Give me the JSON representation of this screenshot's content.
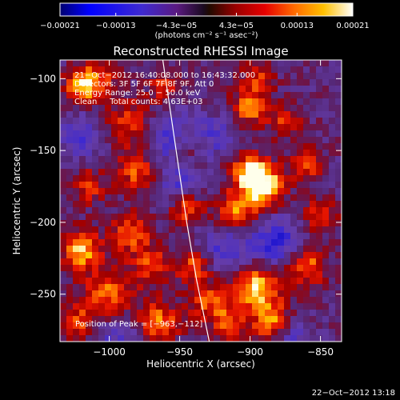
{
  "chart_data": {
    "type": "heatmap",
    "title": "Reconstructed RHESSI Image",
    "xlabel": "Heliocentric X (arcsec)",
    "ylabel": "Heliocentric Y (arcsec)",
    "xlim": [
      -1035,
      -835
    ],
    "ylim": [
      -283,
      -87
    ],
    "x_ticks": [
      -1000,
      -950,
      -900,
      -850
    ],
    "x_tick_labels": [
      "−1000",
      "−950",
      "−900",
      "−850"
    ],
    "y_ticks": [
      -100,
      -150,
      -200,
      -250
    ],
    "y_tick_labels": [
      "−100",
      "−150",
      "−200",
      "−250"
    ],
    "colorbar": {
      "range": [
        -0.00021,
        0.00021
      ],
      "ticks": [
        -0.00021,
        -0.00013,
        -4.3e-05,
        4.3e-05,
        0.00013,
        0.00021
      ],
      "tick_labels": [
        "−0.00021",
        "−0.00013",
        "−4.3e−05",
        "4.3e−05",
        "0.00013",
        "0.00021"
      ],
      "unit_label": "(photons cm⁻² s⁻¹ asec⁻²)"
    },
    "annotations": [
      "21−Oct−2012 16:40:08.000 to 16:43:32.000",
      "Detectors: 3F 5F 6F 7F 8F 9F, Att 0",
      "Energy Range: 25.0 − 50.0 keV",
      "Clean     Total counts: 4.63E+03"
    ],
    "peak_label": "Position of Peak = [−963,−112]",
    "peak_position": [
      -963,
      -112
    ],
    "limb_curve": [
      [
        -962,
        -87
      ],
      [
        -957,
        -120
      ],
      [
        -951,
        -160
      ],
      [
        -945,
        -200
      ],
      [
        -938,
        -240
      ],
      [
        -929,
        -283
      ]
    ],
    "hotspots": [
      [
        -1020,
        -105,
        0.8,
        8
      ],
      [
        -1008,
        -100,
        0.55,
        9
      ],
      [
        -985,
        -130,
        0.5,
        12
      ],
      [
        -980,
        -165,
        0.6,
        10
      ],
      [
        -1015,
        -175,
        0.5,
        9
      ],
      [
        -1020,
        -220,
        0.85,
        10
      ],
      [
        -985,
        -208,
        0.6,
        10
      ],
      [
        -1000,
        -250,
        0.65,
        12
      ],
      [
        -1022,
        -270,
        0.6,
        9
      ],
      [
        -965,
        -270,
        0.75,
        10
      ],
      [
        -970,
        -230,
        0.55,
        10
      ],
      [
        -945,
        -190,
        0.7,
        8
      ],
      [
        -940,
        -230,
        0.6,
        9
      ],
      [
        -960,
        -105,
        0.5,
        8
      ],
      [
        -945,
        -145,
        0.45,
        9
      ],
      [
        -890,
        -175,
        1.0,
        10
      ],
      [
        -900,
        -165,
        0.9,
        9
      ],
      [
        -910,
        -195,
        0.85,
        11
      ],
      [
        -900,
        -120,
        0.7,
        9
      ],
      [
        -875,
        -130,
        0.55,
        8
      ],
      [
        -895,
        -100,
        0.5,
        8
      ],
      [
        -895,
        -245,
        0.95,
        12
      ],
      [
        -885,
        -270,
        0.75,
        9
      ],
      [
        -860,
        -230,
        0.7,
        10
      ],
      [
        -850,
        -195,
        0.6,
        8
      ],
      [
        -930,
        -255,
        0.6,
        10
      ],
      [
        -860,
        -160,
        0.55,
        8
      ],
      [
        -915,
        -270,
        0.6,
        8
      ]
    ],
    "coldspots": [
      [
        -955,
        -140,
        0.7,
        12
      ],
      [
        -915,
        -215,
        0.6,
        14
      ],
      [
        -880,
        -215,
        0.7,
        12
      ],
      [
        -950,
        -175,
        0.45,
        10
      ],
      [
        -995,
        -280,
        0.4,
        12
      ],
      [
        -1020,
        -140,
        0.5,
        10
      ],
      [
        -925,
        -140,
        0.45,
        10
      ],
      [
        -870,
        -280,
        0.4,
        10
      ]
    ],
    "grid": false,
    "legend": "colorbar-top"
  },
  "footer": {
    "timestamp": "22−Oct−2012 13:18"
  },
  "colors": {
    "background": "#000000",
    "foreground": "#ffffff",
    "limb": "#ffffff"
  }
}
